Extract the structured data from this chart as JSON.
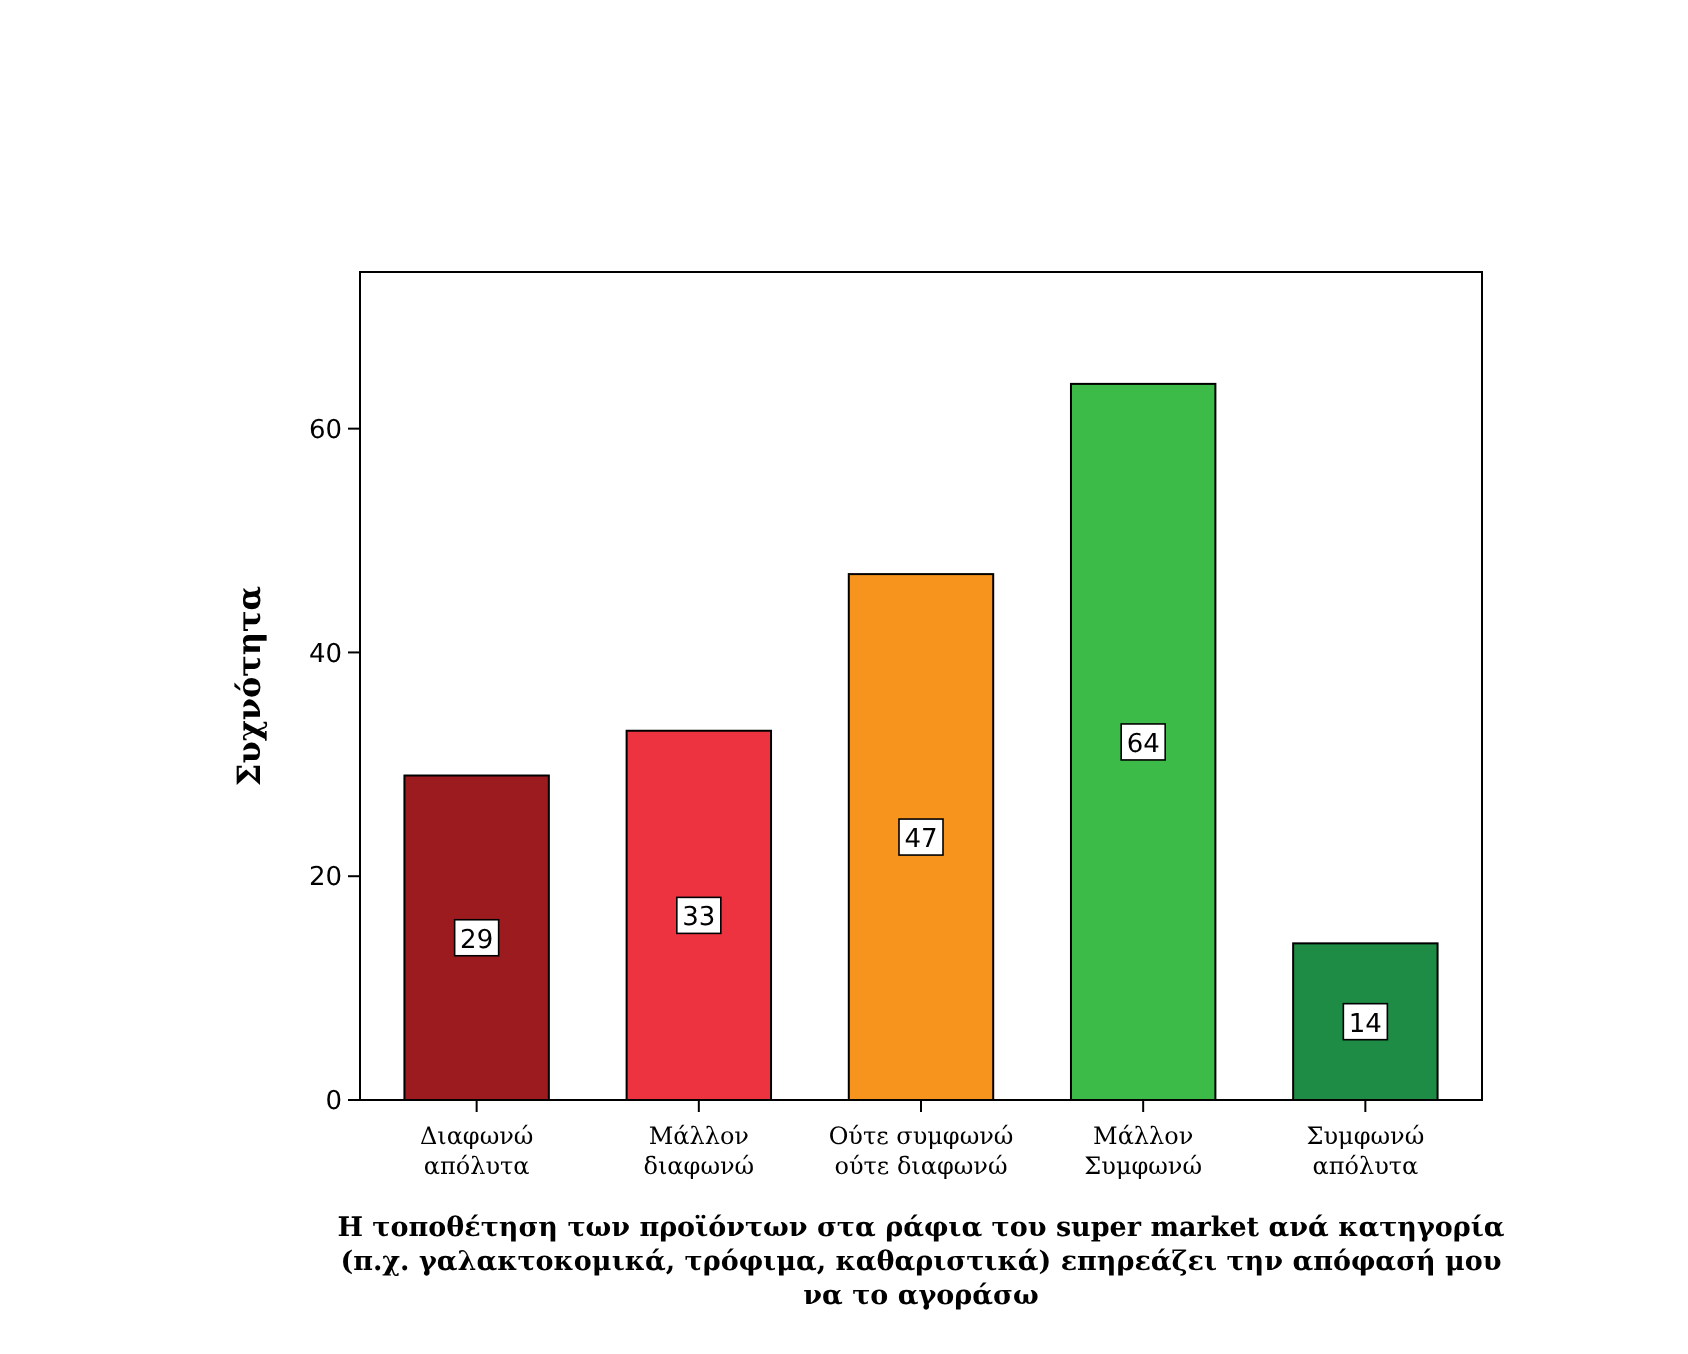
{
  "chart_data": {
    "type": "bar",
    "xlabel": "Η τοποθέτηση των προϊόντων στα ράφια του super market ανά κατηγορία (π.χ. γαλακτοκομικά, τρόφιμα, καθαριστικά) επηρεάζει την απόφασή μου να το αγοράσω",
    "ylabel": "Συχνότητα",
    "categories": [
      "Διαφωνώ\nαπόλυτα",
      "Μάλλον\nδιαφωνώ",
      "Ούτε συμφωνώ\nούτε διαφωνώ",
      "Μάλλον\nΣυμφωνώ",
      "Συμφωνώ\nαπόλυτα"
    ],
    "values": [
      29,
      33,
      47,
      64,
      14
    ],
    "colors": [
      "#9b1b1f",
      "#ee3340",
      "#f7941d",
      "#3dbb49",
      "#1e8c45"
    ],
    "ylim": [
      0,
      74
    ],
    "yticks": [
      0,
      20,
      40,
      60
    ],
    "data_labels": true
  }
}
